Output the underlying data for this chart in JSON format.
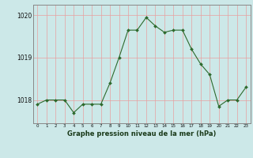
{
  "x": [
    0,
    1,
    2,
    3,
    4,
    5,
    6,
    7,
    8,
    9,
    10,
    11,
    12,
    13,
    14,
    15,
    16,
    17,
    18,
    19,
    20,
    21,
    22,
    23
  ],
  "y": [
    1017.9,
    1018.0,
    1018.0,
    1018.0,
    1017.7,
    1017.9,
    1017.9,
    1017.9,
    1018.4,
    1019.0,
    1019.65,
    1019.65,
    1019.95,
    1019.75,
    1019.6,
    1019.65,
    1019.65,
    1019.2,
    1018.85,
    1018.6,
    1017.85,
    1018.0,
    1018.0,
    1018.3
  ],
  "line_color": "#2d6a2d",
  "marker_color": "#2d6a2d",
  "bg_color": "#cce8e8",
  "grid_color_v": "#e8a0a0",
  "grid_color_h": "#e8a0a0",
  "border_color": "#888888",
  "xlabel": "Graphe pression niveau de la mer (hPa)",
  "xlabel_color": "#1a3a1a",
  "yticks": [
    1018,
    1019,
    1020
  ],
  "xticks": [
    0,
    1,
    2,
    3,
    4,
    5,
    6,
    7,
    8,
    9,
    10,
    11,
    12,
    13,
    14,
    15,
    16,
    17,
    18,
    19,
    20,
    21,
    22,
    23
  ],
  "ylim": [
    1017.45,
    1020.25
  ],
  "xlim": [
    -0.5,
    23.5
  ]
}
